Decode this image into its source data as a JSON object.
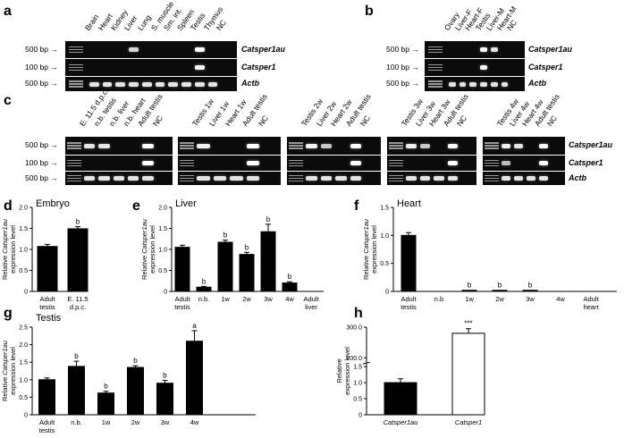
{
  "panels": {
    "a": "a",
    "b": "b",
    "c": "c",
    "d": "d",
    "e": "e",
    "f": "f",
    "g": "g",
    "h": "h"
  },
  "gel_a": {
    "lanes": [
      "Brain",
      "Heart",
      "Kidney",
      "Liver",
      "Lung",
      "S. muscle",
      "Sm. int.",
      "Spleen",
      "Testis",
      "Thymus",
      "NC"
    ],
    "rows": [
      {
        "size": "500 bp",
        "gene": "Catsper1au",
        "bands": [
          0,
          0,
          0,
          0.7,
          0,
          0,
          0,
          0,
          1,
          0,
          0
        ]
      },
      {
        "size": "100 bp",
        "gene": "Catsper1",
        "bands": [
          0,
          0,
          0,
          0,
          0,
          0,
          0,
          0,
          1,
          0,
          0
        ]
      },
      {
        "size": "500 bp",
        "gene": "Actb",
        "bands": [
          0.8,
          0.8,
          0.8,
          0.8,
          0.8,
          0.8,
          0.8,
          0.8,
          0.8,
          0.8,
          0
        ]
      }
    ]
  },
  "gel_b": {
    "lanes": [
      "Ovary",
      "Liver-F",
      "Heart-F",
      "Testis",
      "Liver-M",
      "Heart-M",
      "NC"
    ],
    "rows": [
      {
        "size": "500 bp",
        "gene": "Catsper1au",
        "bands": [
          0,
          0,
          0,
          1,
          0.8,
          0,
          0
        ]
      },
      {
        "size": "100 bp",
        "gene": "Catsper1",
        "bands": [
          0,
          0,
          0,
          1,
          0,
          0,
          0
        ]
      },
      {
        "size": "500 bp",
        "gene": "Actb",
        "bands": [
          0.8,
          0.8,
          0.8,
          0.8,
          0.8,
          0.8,
          0
        ]
      }
    ]
  },
  "gel_c": {
    "row_sizes": [
      "500 bp",
      "100 bp",
      "500 bp"
    ],
    "genes": [
      "Catsper1au",
      "Catsper1",
      "Actb"
    ],
    "blocks": [
      {
        "lanes": [
          "E. 11.5 d.p.c.",
          "n.b. testis",
          "n.b. liver",
          "n.b. heart",
          "Adult testis",
          "NC"
        ],
        "bands": [
          [
            0.8,
            0.8,
            0,
            0,
            1,
            0
          ],
          [
            0,
            0,
            0,
            0,
            1,
            0
          ],
          [
            0.8,
            0.8,
            0.8,
            0.8,
            0.8,
            0
          ]
        ]
      },
      {
        "lanes": [
          "Testis 1w",
          "Liver 1w",
          "Heart 1w",
          "Adult testis",
          "NC"
        ],
        "bands": [
          [
            0.9,
            0,
            0,
            1,
            0
          ],
          [
            0,
            0,
            0,
            1,
            0
          ],
          [
            0.8,
            0.8,
            0.8,
            0.8,
            0
          ]
        ]
      },
      {
        "lanes": [
          "Testis 2w",
          "Liver 2w",
          "Heart 2w",
          "Adult testis",
          "NC"
        ],
        "bands": [
          [
            0.9,
            0.6,
            0,
            1,
            0
          ],
          [
            0,
            0,
            0,
            1,
            0
          ],
          [
            0.8,
            0.8,
            0.8,
            0.8,
            0
          ]
        ]
      },
      {
        "lanes": [
          "Testis 3w",
          "Liver 3w",
          "Heart 3w",
          "Adult testis",
          "NC"
        ],
        "bands": [
          [
            0.9,
            0.6,
            0,
            1,
            0
          ],
          [
            0,
            0,
            0,
            1,
            0
          ],
          [
            0.8,
            0.8,
            0.8,
            0.8,
            0
          ]
        ]
      },
      {
        "lanes": [
          "Testis 4w",
          "Liver 4w",
          "Heart 4w",
          "Adult testis",
          "NC"
        ],
        "bands": [
          [
            0.9,
            0.8,
            0,
            1,
            0
          ],
          [
            0.5,
            0,
            0,
            1,
            0
          ],
          [
            0.8,
            0.8,
            0.8,
            0.8,
            0
          ]
        ]
      }
    ]
  },
  "chart_data": [
    {
      "panel": "d",
      "type": "bar",
      "title": "Embryo",
      "ylabel_pre": "Relative ",
      "ylabel_gene": "Catsper1au",
      "ylabel_line2": "expression level",
      "categories": [
        [
          "Adult",
          "testis"
        ],
        [
          "E. 11.5",
          "d.p.c."
        ]
      ],
      "values": [
        1.07,
        1.49
      ],
      "errors": [
        0.05,
        0.05
      ],
      "sig": [
        "",
        "b"
      ],
      "ylim": [
        0,
        2.0
      ],
      "yticks": [
        "0",
        "0.5",
        "1.0",
        "1.5",
        "2.0"
      ]
    },
    {
      "panel": "e",
      "type": "bar",
      "title": "Liver",
      "ylabel_pre": "Relative ",
      "ylabel_gene": "Catsper1au",
      "ylabel_line2": "expression level",
      "categories": [
        [
          "Adult",
          "testis"
        ],
        [
          "n.b."
        ],
        [
          "1w"
        ],
        [
          "2w"
        ],
        [
          "3w"
        ],
        [
          "4w"
        ],
        [
          "Adult",
          "liver"
        ]
      ],
      "values": [
        1.05,
        0.1,
        1.17,
        0.88,
        1.42,
        0.2,
        null
      ],
      "errors": [
        0.05,
        0.02,
        0.05,
        0.05,
        0.18,
        0.03,
        null
      ],
      "sig": [
        "",
        "b",
        "b",
        "b",
        "b",
        "b",
        ""
      ],
      "ylim": [
        0,
        2.0
      ],
      "yticks": [
        "0",
        "0.5",
        "1.0",
        "1.5",
        "2.0"
      ],
      "note": "values mapped in order"
    },
    {
      "panel": "f",
      "type": "bar",
      "title": "Heart",
      "ylabel_pre": "Relative ",
      "ylabel_gene": "Catsper1au",
      "ylabel_line2": "expression level",
      "categories": [
        [
          "Adult",
          "testis"
        ],
        [
          "n.b"
        ],
        [
          "1w"
        ],
        [
          "2w"
        ],
        [
          "3w"
        ],
        [
          "4w"
        ],
        [
          "Adult",
          "heart"
        ]
      ],
      "values": [
        1.0,
        0,
        0.02,
        0.02,
        0.02,
        0,
        0
      ],
      "errors": [
        0.05,
        0,
        0,
        0,
        0,
        0,
        0
      ],
      "sig": [
        "",
        "",
        "b",
        "b",
        "b",
        "",
        ""
      ],
      "ylim": [
        0,
        1.5
      ],
      "yticks": [
        "0",
        "0.5",
        "1.0",
        "1.5"
      ]
    },
    {
      "panel": "g",
      "type": "bar",
      "title": "Testis",
      "ylabel_pre": "Relative ",
      "ylabel_gene": "Catsper1au",
      "ylabel_line2": "expression level",
      "categories": [
        [
          "Adult",
          "testis"
        ],
        [
          "n.b."
        ],
        [
          "1w"
        ],
        [
          "2w"
        ],
        [
          "3w"
        ],
        [
          "4w"
        ]
      ],
      "values": [
        1.0,
        1.38,
        0.62,
        1.35,
        0.9,
        2.1
      ],
      "errors": [
        0.05,
        0.15,
        0.05,
        0.05,
        0.08,
        0.3
      ],
      "sig": [
        "",
        "b",
        "b",
        "b",
        "b",
        "a"
      ],
      "ylim": [
        0,
        2.5
      ],
      "yticks": [
        "0",
        "0.5",
        "1.0",
        "1.5",
        "2.0",
        "2.5"
      ]
    },
    {
      "panel": "h",
      "type": "bar",
      "ylabel_pre": "Relative",
      "ylabel_gene": "",
      "ylabel_line2": "expression level",
      "categories": [
        [
          "Catsper1au"
        ],
        [
          "Catsper1"
        ]
      ],
      "values": [
        1.0,
        280.0
      ],
      "errors": [
        0.12,
        15
      ],
      "sig": [
        "",
        "***"
      ],
      "ylim": [
        0,
        300
      ],
      "yticks": [
        "0",
        "0.5",
        "1.0",
        "1.5",
        "200.0",
        "300.0"
      ],
      "broken_axis": true,
      "fills": [
        "#000000",
        "#ffffff"
      ]
    }
  ]
}
